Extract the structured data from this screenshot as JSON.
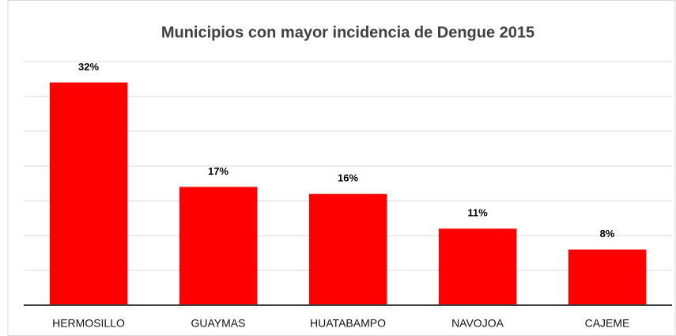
{
  "chart_data": {
    "type": "bar",
    "title": "Municipios con mayor incidencia de Dengue 2015",
    "categories": [
      "HERMOSILLO",
      "GUAYMAS",
      "HUATABAMPO",
      "NAVOJOA",
      "CAJEME"
    ],
    "values": [
      32,
      17,
      16,
      11,
      8
    ],
    "value_labels": [
      "32%",
      "17%",
      "16%",
      "11%",
      "8%"
    ],
    "color": "#ff0000",
    "ylim": [
      0,
      35
    ],
    "yticks": [
      0,
      5,
      10,
      15,
      20,
      25,
      30,
      35
    ],
    "grid": true
  }
}
